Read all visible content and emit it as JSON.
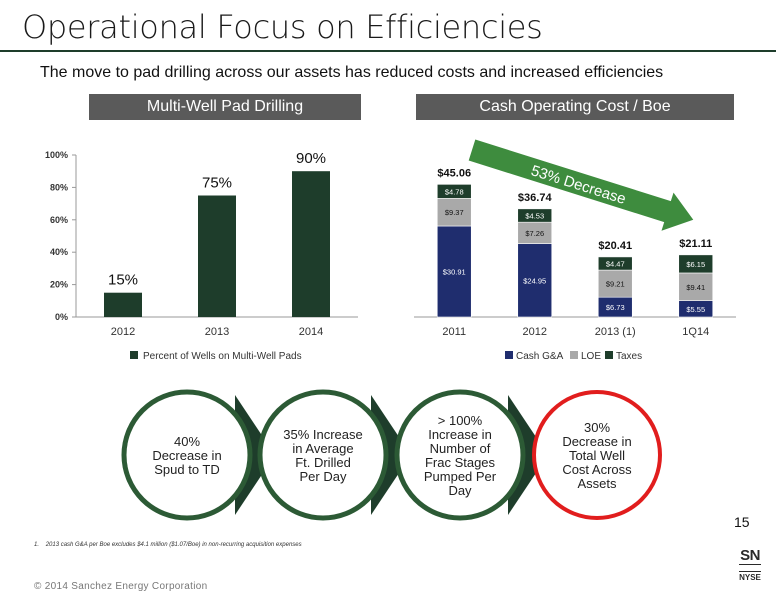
{
  "page": {
    "title": "Operational Focus on Efficiencies",
    "subtitle": "The move to pad drilling across our assets has reduced costs and increased efficiencies",
    "left_panel_title": "Multi-Well Pad Drilling",
    "right_panel_title": "Cash Operating Cost / Boe",
    "page_number": "15",
    "footnote_num": "1.",
    "footnote_text": "2013 cash G&A per Boe excludes $4.1 million ($1.07/Boe) in non-recurring acquisition expenses",
    "copyright": "© 2014 Sanchez Energy Corporation",
    "logo_top": "SN",
    "logo_bottom": "NYSE"
  },
  "colors": {
    "dark_green": "#1e3d2b",
    "navy": "#1f2d6e",
    "gray": "#a9a9a9",
    "arrow_green": "#3e8c3e",
    "red_ring": "#e11d1d"
  },
  "chart_data": [
    {
      "type": "bar",
      "categories": [
        "2012",
        "2013",
        "2014"
      ],
      "values": [
        15,
        75,
        90
      ],
      "value_labels": [
        "15%",
        "75%",
        "90%"
      ],
      "series_name": "Percent of Wells on Multi-Well Pads",
      "ylim": [
        0,
        100
      ],
      "yticks": [
        "0%",
        "20%",
        "40%",
        "60%",
        "80%",
        "100%"
      ]
    },
    {
      "type": "bar",
      "stacked": true,
      "categories": [
        "2011",
        "2012",
        "2013 (1)",
        "1Q14"
      ],
      "series": [
        {
          "name": "Cash G&A",
          "values": [
            30.91,
            24.95,
            6.73,
            5.55
          ],
          "labels": [
            "$30.91",
            "$24.95",
            "$6.73",
            "$5.55"
          ]
        },
        {
          "name": "LOE",
          "values": [
            9.37,
            7.26,
            9.21,
            9.41
          ],
          "labels": [
            "$9.37",
            "$7.26",
            "$9.21",
            "$9.41"
          ]
        },
        {
          "name": "Taxes",
          "values": [
            4.78,
            4.53,
            4.47,
            6.15
          ],
          "labels": [
            "$4.78",
            "$4.53",
            "$4.47",
            "$6.15"
          ]
        }
      ],
      "totals": [
        "$45.06",
        "$36.74",
        "$20.41",
        "$21.11"
      ],
      "annotation": "53% Decrease",
      "ylim": [
        0,
        50
      ]
    }
  ],
  "highlights": [
    {
      "line1": "40%",
      "line2": "Decrease in",
      "line3": "Spud to TD",
      "line4": "",
      "line5": ""
    },
    {
      "line1": "35% Increase",
      "line2": "in Average",
      "line3": "Ft. Drilled",
      "line4": "Per Day",
      "line5": ""
    },
    {
      "line1": "> 100%",
      "line2": "Increase in",
      "line3": "Number of",
      "line4": "Frac Stages",
      "line5": "Pumped Per",
      "line6": "Day"
    },
    {
      "line1": "30%",
      "line2": "Decrease in",
      "line3": "Total Well",
      "line4": "Cost Across",
      "line5": "Assets"
    }
  ]
}
